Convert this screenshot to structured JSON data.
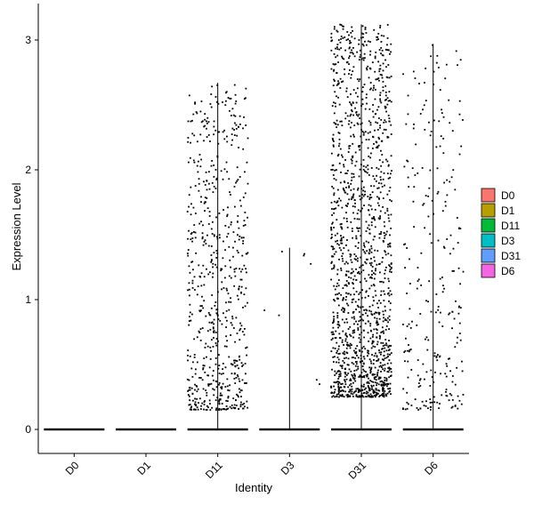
{
  "chart_data": {
    "type": "scatter",
    "subtype": "violin-jitter",
    "title": "",
    "xlabel": "Identity",
    "ylabel": "Expression Level",
    "categories": [
      "D0",
      "D1",
      "D11",
      "D3",
      "D31",
      "D6"
    ],
    "ylim": [
      -0.18,
      3.15
    ],
    "yticks": [
      0,
      1,
      2,
      3
    ],
    "grid": false,
    "legend": {
      "placement": "right",
      "title": "",
      "entries": [
        "D0",
        "D1",
        "D11",
        "D3",
        "D31",
        "D6"
      ]
    },
    "colors": [
      "#F8766D",
      "#B79F00",
      "#00BA38",
      "#00BFC4",
      "#619CFF",
      "#F564E3"
    ],
    "series": [
      {
        "category": "D0",
        "violin_max": 0.0,
        "nonzero_points": 0,
        "nonzero_range": [
          0,
          0
        ],
        "zero_point_band": true
      },
      {
        "category": "D1",
        "violin_max": 0.0,
        "nonzero_points": 0,
        "nonzero_range": [
          0,
          0
        ],
        "zero_point_band": true
      },
      {
        "category": "D11",
        "violin_max": 2.67,
        "nonzero_points": 650,
        "nonzero_range": [
          0.15,
          2.67
        ],
        "zero_point_band": true
      },
      {
        "category": "D3",
        "violin_max": 1.4,
        "nonzero_points": 8,
        "nonzero_range": [
          0.2,
          1.4
        ],
        "zero_point_band": true
      },
      {
        "category": "D31",
        "violin_max": 3.12,
        "nonzero_points": 1500,
        "nonzero_range": [
          0.25,
          3.12
        ],
        "zero_point_band": true
      },
      {
        "category": "D6",
        "violin_max": 2.97,
        "nonzero_points": 260,
        "nonzero_range": [
          0.15,
          2.97
        ],
        "zero_point_band": true
      }
    ]
  }
}
